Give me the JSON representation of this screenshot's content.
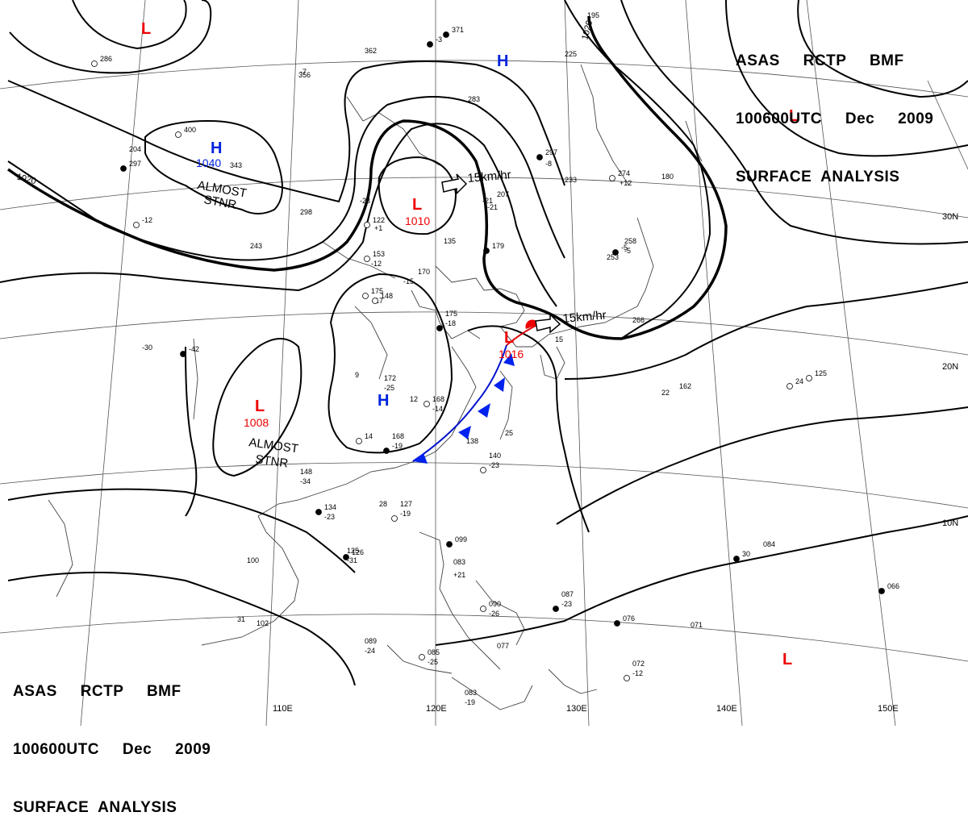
{
  "header": {
    "line1": "ASAS     RCTP     BMF",
    "line2": "100600UTC     Dec     2009",
    "line3": "SURFACE  ANALYSIS"
  },
  "longitude_labels": [
    "110E",
    "120E",
    "130E",
    "140E",
    "150E"
  ],
  "latitude_labels": [
    "30N",
    "20N",
    "10N"
  ],
  "pressure_centers": [
    {
      "type": "L",
      "value": ""
    },
    {
      "type": "H",
      "value": ""
    },
    {
      "type": "L",
      "value": ""
    },
    {
      "type": "H",
      "value": "1040"
    },
    {
      "type": "L",
      "value": "1010"
    },
    {
      "type": "L",
      "value": "1008"
    },
    {
      "type": "H",
      "value": ""
    },
    {
      "type": "L",
      "value": "1016"
    },
    {
      "type": "L",
      "value": ""
    }
  ],
  "isobar_labels": [
    "1020",
    "1020"
  ],
  "annotations": {
    "stnr1_a": "ALMOST",
    "stnr1_b": "STNR",
    "stnr2_a": "ALMOST",
    "stnr2_b": "STNR",
    "motion1": "15km/hr",
    "motion2": "15km/hr"
  },
  "stations": [
    "286",
    "356",
    "362",
    "371",
    "225",
    "195",
    "400",
    "204",
    "343",
    "-3",
    "-7",
    "283",
    "-12",
    "-21",
    "233",
    "297",
    "-8",
    "207",
    "274",
    "+12",
    "180",
    "297",
    "-21",
    "298",
    "122",
    "+1",
    "-23",
    "-5",
    "243",
    "253",
    "153",
    "-12",
    "135",
    "179",
    "170",
    "-15",
    "175",
    "-17",
    "175",
    "-18",
    "258",
    "-5",
    "148",
    "15",
    "266",
    "126",
    "172",
    "-25",
    "168",
    "-14",
    "168",
    "-19",
    "138",
    "140",
    "-23",
    "148",
    "-34",
    "134",
    "-23",
    "127",
    "-19",
    "125",
    "-31",
    "099",
    "083",
    "+21",
    "090",
    "-26",
    "087",
    "-23",
    "089",
    "-24",
    "085",
    "-25",
    "077",
    "076",
    "071",
    "072",
    "-12",
    "083",
    "-19",
    "066",
    "084",
    "162",
    "125",
    "102",
    "100",
    "-42",
    "-30",
    "22",
    "24",
    "25",
    "28",
    "30",
    "31",
    "12",
    "14",
    "9"
  ]
}
